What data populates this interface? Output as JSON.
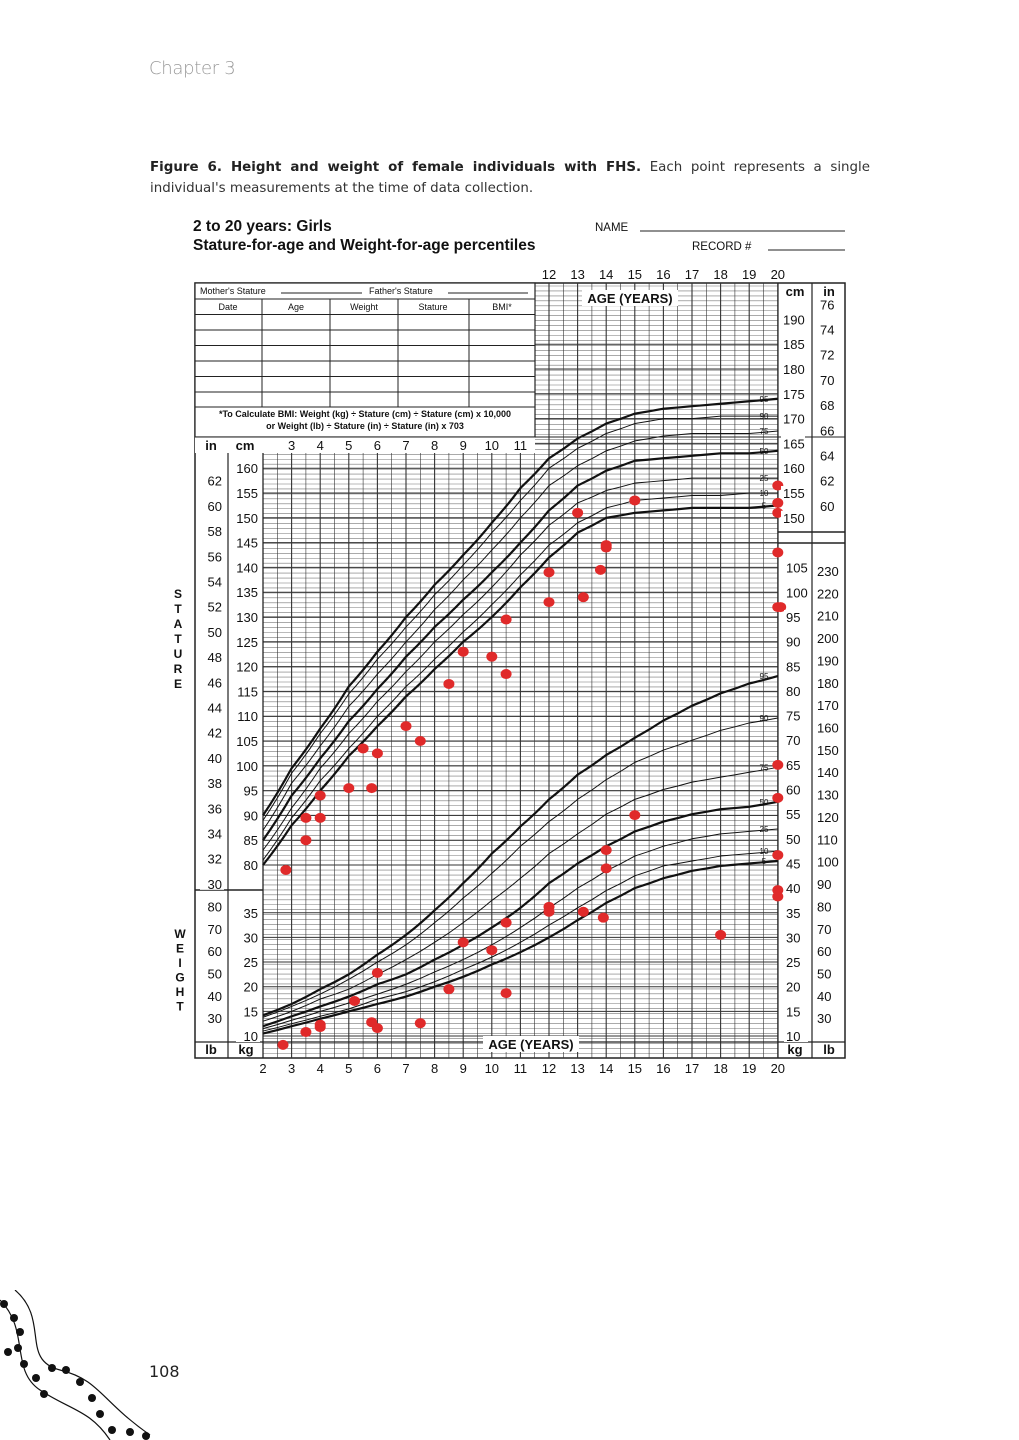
{
  "page": {
    "chapter": "Chapter 3",
    "page_number": "108"
  },
  "caption": {
    "bold": "Figure 6. Height and weight of female individuals with FHS.",
    "text": " Each point represents a single individual's measurements at the time of data collection."
  },
  "form": {
    "title_line1": "2 to 20 years: Girls",
    "title_line2": "Stature-for-age and Weight-for-age percentiles",
    "name_label": "NAME",
    "record_label": "RECORD #",
    "mother_label": "Mother's Stature",
    "father_label": "Father's Stature",
    "table_headers": [
      "Date",
      "Age",
      "Weight",
      "Stature",
      "BMI*"
    ],
    "bmi_note1": "*To Calculate BMI: Weight (kg) ÷ Stature (cm) ÷ Stature (cm) x 10,000",
    "bmi_note2": "or Weight (lb) ÷ Stature (in) ÷ Stature (in) x 703",
    "stature_vertical": "STATURE",
    "weight_vertical": "WEIGHT",
    "age_label": "AGE (YEARS)",
    "unit_in": "in",
    "unit_cm": "cm",
    "unit_kg": "kg",
    "unit_lb": "lb"
  },
  "chart_data": {
    "type": "scatter",
    "title": "2 to 20 years: Girls Stature-for-age and Weight-for-age percentiles",
    "xlabel": "AGE (YEARS)",
    "xlim": [
      2,
      20
    ],
    "x_ticks_bottom": [
      "2",
      "3",
      "4",
      "5",
      "6",
      "7",
      "8",
      "9",
      "10",
      "11",
      "12",
      "13",
      "14",
      "15",
      "16",
      "17",
      "18",
      "19",
      "20"
    ],
    "x_ticks_top": [
      "12",
      "13",
      "14",
      "15",
      "16",
      "17",
      "18",
      "19",
      "20"
    ],
    "x_ticks_mid": [
      "3",
      "4",
      "5",
      "6",
      "7",
      "8",
      "9",
      "10",
      "11"
    ],
    "stature_cm_ticks_left": [
      "80",
      "85",
      "90",
      "95",
      "100",
      "105",
      "110",
      "115",
      "120",
      "125",
      "130",
      "135",
      "140",
      "145",
      "150",
      "155",
      "160"
    ],
    "stature_in_ticks_left": [
      "30",
      "32",
      "34",
      "36",
      "38",
      "40",
      "42",
      "44",
      "46",
      "48",
      "50",
      "52",
      "54",
      "56",
      "58",
      "60",
      "62"
    ],
    "stature_cm_ticks_right": [
      "150",
      "155",
      "160",
      "165",
      "170",
      "175",
      "180",
      "185",
      "190"
    ],
    "stature_in_ticks_right": [
      "60",
      "62",
      "64",
      "66",
      "68",
      "70",
      "72",
      "74",
      "76"
    ],
    "weight_kg_ticks_left": [
      "10",
      "15",
      "20",
      "25",
      "30",
      "35"
    ],
    "weight_lb_ticks_left": [
      "30",
      "40",
      "50",
      "60",
      "70",
      "80"
    ],
    "weight_kg_ticks_right": [
      "10",
      "15",
      "20",
      "25",
      "30",
      "35",
      "40",
      "45",
      "50",
      "55",
      "60",
      "65",
      "70",
      "75",
      "80",
      "85",
      "90",
      "95",
      "100",
      "105"
    ],
    "weight_lb_ticks_right": [
      "30",
      "40",
      "50",
      "60",
      "70",
      "80",
      "90",
      "100",
      "110",
      "120",
      "130",
      "140",
      "150",
      "160",
      "170",
      "180",
      "190",
      "200",
      "210",
      "220",
      "230"
    ],
    "percentile_labels": [
      "5",
      "10",
      "25",
      "50",
      "75",
      "90",
      "95"
    ],
    "curve_ages": [
      2,
      3,
      4,
      5,
      6,
      7,
      8,
      9,
      10,
      11,
      12,
      13,
      14,
      15,
      16,
      17,
      18,
      19,
      20
    ],
    "stature_percentiles_cm": {
      "5": [
        80,
        88,
        95,
        102,
        108,
        114,
        119.5,
        125,
        130,
        136,
        142,
        147,
        150,
        151,
        151.5,
        152,
        152,
        152,
        152.5
      ],
      "10": [
        81,
        89.5,
        97,
        103.5,
        110,
        116,
        121.5,
        127,
        132.5,
        138.5,
        144.5,
        149,
        152,
        153.5,
        154,
        154.5,
        154.5,
        155,
        155
      ],
      "25": [
        83,
        91.5,
        99.5,
        106.5,
        113,
        119,
        125,
        130.5,
        136,
        142.5,
        148.5,
        153,
        155.5,
        157,
        157.5,
        158,
        158,
        158,
        158
      ],
      "50": [
        85,
        94,
        101.5,
        109,
        115.5,
        122,
        128,
        133.5,
        139,
        145,
        151.5,
        156.5,
        159.5,
        161.5,
        162,
        162.5,
        163,
        163,
        163.5
      ],
      "75": [
        87,
        96.5,
        104,
        112,
        118.5,
        125,
        131.5,
        137.5,
        143.5,
        150,
        156.5,
        160.5,
        163.5,
        165.5,
        166.5,
        167,
        167,
        167,
        167.5
      ],
      "90": [
        89,
        98.5,
        106.5,
        114.5,
        121.5,
        128,
        134.5,
        140.5,
        147,
        153.5,
        160,
        164,
        167,
        169,
        170,
        170,
        170.5,
        170.5,
        170.5
      ],
      "95": [
        90,
        99.5,
        107.5,
        116,
        123,
        130,
        136.5,
        142.5,
        149,
        156,
        162,
        166,
        169,
        171,
        172,
        172.5,
        173,
        173.5,
        174
      ]
    },
    "weight_percentiles_kg": {
      "5": [
        10.5,
        12,
        13.5,
        15,
        16.5,
        18,
        20,
        22,
        24.5,
        27,
        30,
        33.5,
        37,
        40,
        42,
        43.5,
        44.5,
        45,
        45.5
      ],
      "10": [
        11,
        12.5,
        14,
        15.5,
        17.5,
        19,
        21,
        23.5,
        26,
        29,
        32.5,
        36,
        39.5,
        42.5,
        44.5,
        45.5,
        46.5,
        47,
        47.5
      ],
      "25": [
        11.5,
        13.2,
        15,
        16.7,
        18.5,
        20.5,
        23,
        25.5,
        28.5,
        32,
        36,
        40,
        43.5,
        46.5,
        48.5,
        50,
        51,
        51.5,
        52
      ],
      "50": [
        12,
        14,
        16,
        18,
        20.5,
        22.5,
        25.5,
        28.5,
        32,
        36,
        41,
        45,
        48.5,
        51.5,
        53.5,
        55,
        56,
        56.5,
        57.5
      ],
      "75": [
        13,
        15,
        17.5,
        19.5,
        22.5,
        25.5,
        29,
        33,
        37.5,
        42,
        47,
        51,
        55,
        58,
        60,
        61.5,
        62.5,
        63.5,
        64.5
      ],
      "90": [
        13.8,
        16,
        18.5,
        21.5,
        25,
        28.5,
        33,
        38,
        43,
        48.5,
        53.5,
        58,
        62,
        65.5,
        68,
        70,
        72,
        73.5,
        74.5
      ],
      "95": [
        14.2,
        16.5,
        19.5,
        22.5,
        26.5,
        30.5,
        35.5,
        41,
        47,
        52.5,
        58,
        63,
        67,
        70.5,
        74,
        77,
        79.5,
        81.5,
        83
      ]
    },
    "series": [
      {
        "name": "Stature (cm)",
        "color": "#e02a2a",
        "points": [
          [
            2.8,
            79
          ],
          [
            3.5,
            85
          ],
          [
            3.5,
            89.5
          ],
          [
            4,
            89.5
          ],
          [
            4,
            94
          ],
          [
            5,
            95.5
          ],
          [
            5.8,
            95.5
          ],
          [
            5.5,
            103.5
          ],
          [
            6,
            102.5
          ],
          [
            7,
            108
          ],
          [
            7.5,
            105
          ],
          [
            8.5,
            116.5
          ],
          [
            9,
            123
          ],
          [
            10,
            122
          ],
          [
            10.5,
            118.5
          ],
          [
            10.5,
            129.5
          ],
          [
            12,
            133
          ],
          [
            12,
            139
          ],
          [
            13,
            151
          ],
          [
            13.2,
            134
          ],
          [
            13.8,
            139.5
          ],
          [
            14,
            144
          ],
          [
            14,
            144.5
          ],
          [
            15,
            153.5
          ],
          [
            20,
            143
          ],
          [
            20,
            132
          ],
          [
            20.1,
            132
          ],
          [
            20,
            153
          ],
          [
            20,
            151
          ],
          [
            20,
            156.5
          ]
        ]
      },
      {
        "name": "Weight (kg)",
        "color": "#e02a2a",
        "points": [
          [
            2.7,
            8.2
          ],
          [
            3.5,
            10.8
          ],
          [
            4,
            11.8
          ],
          [
            4,
            12.3
          ],
          [
            5.2,
            17.1
          ],
          [
            5.8,
            12.8
          ],
          [
            6,
            11.6
          ],
          [
            6,
            22.8
          ],
          [
            7.5,
            12.6
          ],
          [
            8.5,
            19.5
          ],
          [
            9,
            29
          ],
          [
            10,
            27.4
          ],
          [
            10.5,
            33
          ],
          [
            10.5,
            18.7
          ],
          [
            12,
            36.2
          ],
          [
            12,
            35.2
          ],
          [
            13.2,
            35.2
          ],
          [
            13.9,
            34
          ],
          [
            14,
            44
          ],
          [
            14,
            47.7
          ],
          [
            15,
            54.8
          ],
          [
            18,
            30.5
          ],
          [
            20,
            65
          ],
          [
            20,
            58.3
          ],
          [
            20,
            46.7
          ],
          [
            20,
            39.6
          ],
          [
            20,
            38.3
          ]
        ]
      }
    ]
  }
}
